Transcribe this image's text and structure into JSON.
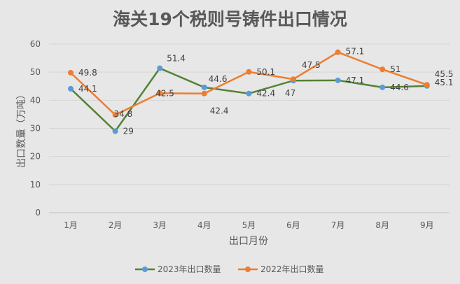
{
  "chart_data": {
    "type": "line",
    "title": "海关19个税则号铸件出口情况",
    "xlabel": "出口月份",
    "ylabel": "出口数量（万吨）",
    "categories": [
      "1月",
      "2月",
      "3月",
      "4月",
      "5月",
      "6月",
      "7月",
      "8月",
      "9月"
    ],
    "ylim": [
      0,
      60
    ],
    "yticks": [
      "0",
      "10",
      "20",
      "30",
      "40",
      "50",
      "60"
    ],
    "grid": true,
    "legend_position": "bottom",
    "series": [
      {
        "name": "2023年出口数量",
        "values": [
          44.1,
          29,
          51.4,
          44.6,
          42.4,
          47,
          47.1,
          44.6,
          45.1
        ],
        "line_color": "#548235",
        "marker_color": "#5b9bd5"
      },
      {
        "name": "2022年出口数量",
        "values": [
          49.8,
          34.8,
          42.5,
          42.4,
          50.1,
          47.5,
          57.1,
          51,
          45.5
        ],
        "line_color": "#ed7d31",
        "marker_color": "#ed7d31"
      }
    ]
  }
}
